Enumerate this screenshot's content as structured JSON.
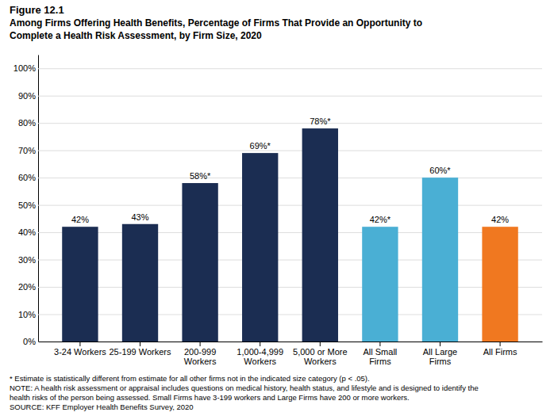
{
  "chart_data": {
    "type": "bar",
    "title": "Figure 12.1",
    "subtitle": [
      "Among Firms Offering Health Benefits, Percentage of Firms That Provide an Opportunity to",
      "Complete a Health Risk Assessment, by Firm Size, 2020"
    ],
    "categories": [
      "3-24 Workers",
      "25-199 Workers",
      "200-999\nWorkers",
      "1,000-4,999\nWorkers",
      "5,000 or More\nWorkers",
      "All Small\nFirms",
      "All Large\nFirms",
      "All Firms"
    ],
    "values": [
      42,
      43,
      58,
      69,
      78,
      42,
      60,
      42
    ],
    "value_labels": [
      "42%",
      "43%",
      "58%*",
      "69%*",
      "78%*",
      "42%*",
      "60%*",
      "42%"
    ],
    "colors": [
      "#1b2d52",
      "#1b2d52",
      "#1b2d52",
      "#1b2d52",
      "#1b2d52",
      "#4aafd4",
      "#4aafd4",
      "#f07820"
    ],
    "data_labels": true,
    "ylim": [
      0,
      105
    ],
    "yticks": [
      {
        "value": 0,
        "label": "0%"
      },
      {
        "value": 10,
        "label": "10%"
      },
      {
        "value": 20,
        "label": "20%"
      },
      {
        "value": 30,
        "label": "30%"
      },
      {
        "value": 40,
        "label": "40%"
      },
      {
        "value": 50,
        "label": "50%"
      },
      {
        "value": 60,
        "label": "60%"
      },
      {
        "value": 70,
        "label": "70%"
      },
      {
        "value": 80,
        "label": "80%"
      },
      {
        "value": 90,
        "label": "90%"
      },
      {
        "value": 100,
        "label": "100%"
      }
    ],
    "grid": true,
    "annotations": [
      "* Estimate is statistically different from estimate for all other firms not in the indicated size category (p < .05).",
      "NOTE: A health risk assessment or appraisal includes questions on medical history, health status, and lifestyle and is designed to identify the",
      "health risks of the person being assessed. Small Firms have 3-199 workers and Large Firms have 200 or more workers.",
      "SOURCE: KFF Employer Health Benefits Survey, 2020"
    ]
  }
}
